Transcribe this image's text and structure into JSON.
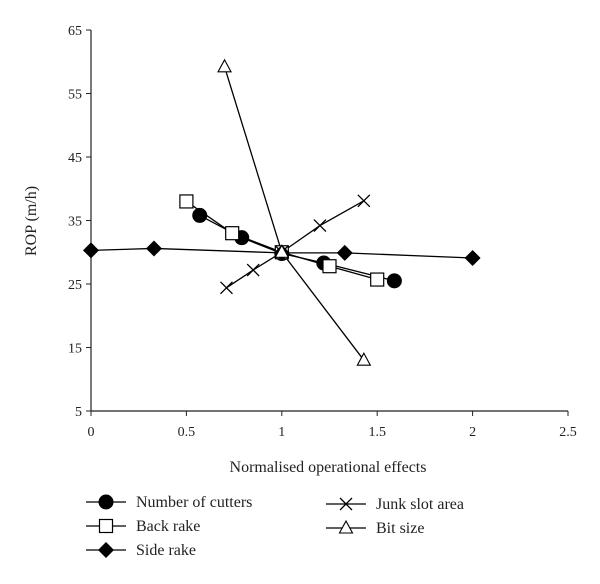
{
  "chart_data": {
    "type": "line",
    "title": "",
    "xlabel": "Normalised operational effects",
    "ylabel": "ROP (m/h)",
    "xlim": [
      0,
      2.5
    ],
    "ylim": [
      5,
      65
    ],
    "xticks": [
      "0",
      "0.5",
      "1",
      "1.5",
      "2",
      "2.5"
    ],
    "yticks": [
      "5",
      "15",
      "25",
      "35",
      "45",
      "55",
      "65"
    ],
    "grid": false,
    "legend_position": "bottom",
    "series": [
      {
        "name": "Number of cutters",
        "marker": "filled-circle",
        "x": [
          0.57,
          0.79,
          1.0,
          1.22,
          1.59
        ],
        "y": [
          35.8,
          32.3,
          29.8,
          28.3,
          25.5
        ]
      },
      {
        "name": "Back rake",
        "marker": "open-square",
        "x": [
          0.5,
          0.74,
          1.0,
          1.25,
          1.5
        ],
        "y": [
          38.0,
          33.0,
          30.0,
          27.8,
          25.7
        ]
      },
      {
        "name": "Side rake",
        "marker": "filled-diamond",
        "x": [
          0.0,
          0.33,
          1.0,
          1.33,
          2.0
        ],
        "y": [
          30.3,
          30.6,
          29.9,
          29.9,
          29.1
        ]
      },
      {
        "name": "Junk slot area",
        "marker": "cross",
        "x": [
          0.71,
          0.85,
          1.0,
          1.2,
          1.43
        ],
        "y": [
          24.4,
          27.2,
          30.0,
          34.2,
          38.1
        ]
      },
      {
        "name": "Bit size",
        "marker": "open-triangle",
        "x": [
          0.7,
          1.0,
          1.43
        ],
        "y": [
          59.2,
          30.0,
          13.0
        ]
      }
    ]
  }
}
